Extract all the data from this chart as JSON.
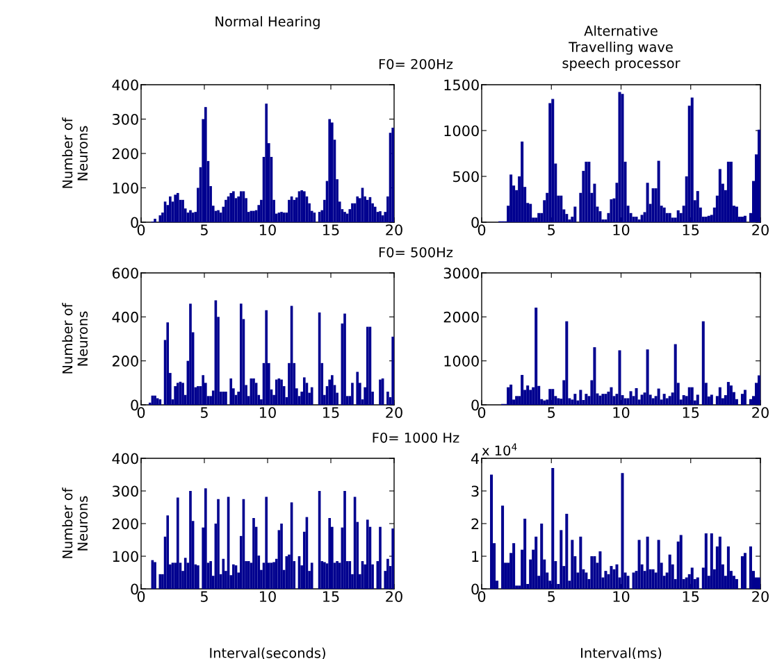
{
  "chart_data": [
    {
      "type": "histogram",
      "title": "Normal Hearing",
      "subtitle": "F0= 200Hz",
      "ylabel": "Number of\nNeurons",
      "color": "#00008f",
      "xlim": [
        0,
        20
      ],
      "xticks": [
        0,
        5,
        10,
        15,
        20
      ],
      "ylim": [
        0,
        400
      ],
      "yticks": [
        0,
        100,
        200,
        300,
        400
      ],
      "bins": [
        0,
        0.2,
        0.4,
        0.6,
        0.8,
        1,
        1.2,
        1.4,
        1.6,
        1.8,
        2,
        2.2,
        2.4,
        2.6,
        2.8,
        3,
        3.2,
        3.4,
        3.6,
        3.8,
        4,
        4.2,
        4.4,
        4.6,
        4.8,
        5,
        5.2,
        5.4,
        5.6,
        5.8,
        6,
        6.2,
        6.4,
        6.6,
        6.8,
        7,
        7.2,
        7.4,
        7.6,
        7.8,
        8,
        8.2,
        8.4,
        8.6,
        8.8,
        9,
        9.2,
        9.4,
        9.6,
        9.8,
        10,
        10.2,
        10.4,
        10.6,
        10.8,
        11,
        11.2,
        11.4,
        11.6,
        11.8,
        12,
        12.2,
        12.4,
        12.6,
        12.8,
        13,
        13.2,
        13.4,
        13.6,
        13.8,
        14,
        14.2,
        14.4,
        14.6,
        14.8,
        15,
        15.2,
        15.4,
        15.6,
        15.8,
        16,
        16.2,
        16.4,
        16.6,
        16.8,
        17,
        17.2,
        17.4,
        17.6,
        17.8,
        18,
        18.2,
        18.4,
        18.6,
        18.8,
        19,
        19.2,
        19.4,
        19.6,
        19.8,
        20
      ],
      "values": [
        0,
        0,
        0,
        0,
        2,
        10,
        0,
        20,
        28,
        60,
        50,
        75,
        60,
        80,
        85,
        65,
        65,
        40,
        28,
        35,
        28,
        30,
        100,
        160,
        300,
        335,
        178,
        105,
        48,
        33,
        35,
        28,
        45,
        65,
        75,
        85,
        90,
        70,
        75,
        90,
        90,
        70,
        30,
        33,
        33,
        35,
        50,
        65,
        190,
        345,
        230,
        190,
        65,
        25,
        28,
        30,
        28,
        28,
        65,
        75,
        65,
        72,
        90,
        93,
        90,
        75,
        55,
        33,
        28,
        0,
        30,
        35,
        65,
        120,
        300,
        290,
        240,
        125,
        60,
        38,
        30,
        25,
        38,
        55,
        55,
        75,
        70,
        100,
        75,
        65,
        73,
        55,
        45,
        30,
        32,
        20,
        30,
        75,
        260,
        275
      ]
    },
    {
      "type": "histogram",
      "title": "Alternative\nTravelling wave\nspeech processor",
      "color": "#00008f",
      "xlim": [
        0,
        20
      ],
      "xticks": [
        0,
        5,
        10,
        15,
        20
      ],
      "ylim": [
        0,
        1500
      ],
      "yticks": [
        0,
        500,
        1000,
        1500
      ],
      "bins": [
        0,
        0.2,
        0.4,
        0.6,
        0.8,
        1,
        1.2,
        1.4,
        1.6,
        1.8,
        2,
        2.2,
        2.4,
        2.6,
        2.8,
        3,
        3.2,
        3.4,
        3.6,
        3.8,
        4,
        4.2,
        4.4,
        4.6,
        4.8,
        5,
        5.2,
        5.4,
        5.6,
        5.8,
        6,
        6.2,
        6.4,
        6.6,
        6.8,
        7,
        7.2,
        7.4,
        7.6,
        7.8,
        8,
        8.2,
        8.4,
        8.6,
        8.8,
        9,
        9.2,
        9.4,
        9.6,
        9.8,
        10,
        10.2,
        10.4,
        10.6,
        10.8,
        11,
        11.2,
        11.4,
        11.6,
        11.8,
        12,
        12.2,
        12.4,
        12.6,
        12.8,
        13,
        13.2,
        13.4,
        13.6,
        13.8,
        14,
        14.2,
        14.4,
        14.6,
        14.8,
        15,
        15.2,
        15.4,
        15.6,
        15.8,
        16,
        16.2,
        16.4,
        16.6,
        16.8,
        17,
        17.2,
        17.4,
        17.6,
        17.8,
        18,
        18.2,
        18.4,
        18.6,
        18.8,
        19,
        19.2,
        19.4,
        19.6,
        19.8,
        20
      ],
      "values": [
        0,
        0,
        0,
        0,
        0,
        0,
        10,
        10,
        10,
        180,
        520,
        400,
        350,
        500,
        880,
        385,
        210,
        200,
        50,
        50,
        100,
        100,
        240,
        320,
        1300,
        1345,
        640,
        290,
        290,
        140,
        90,
        30,
        60,
        170,
        0,
        320,
        560,
        660,
        660,
        320,
        420,
        170,
        120,
        30,
        30,
        100,
        250,
        260,
        430,
        1420,
        1400,
        660,
        180,
        100,
        60,
        60,
        30,
        80,
        110,
        430,
        200,
        370,
        370,
        670,
        180,
        160,
        100,
        100,
        50,
        50,
        130,
        100,
        180,
        500,
        1270,
        1360,
        240,
        340,
        160,
        60,
        60,
        70,
        80,
        160,
        290,
        580,
        420,
        350,
        660,
        660,
        180,
        170,
        60,
        60,
        70,
        0,
        100,
        450,
        740,
        1010
      ]
    },
    {
      "type": "histogram",
      "subtitle": "F0= 500Hz",
      "ylabel": "Number of\nNeurons",
      "color": "#00008f",
      "xlim": [
        0,
        20
      ],
      "xticks": [
        0,
        5,
        10,
        15,
        20
      ],
      "ylim": [
        0,
        600
      ],
      "yticks": [
        0,
        200,
        400,
        600
      ],
      "bins": [
        0,
        0.2,
        0.4,
        0.6,
        0.8,
        1,
        1.2,
        1.4,
        1.6,
        1.8,
        2,
        2.2,
        2.4,
        2.6,
        2.8,
        3,
        3.2,
        3.4,
        3.6,
        3.8,
        4,
        4.2,
        4.4,
        4.6,
        4.8,
        5,
        5.2,
        5.4,
        5.6,
        5.8,
        6,
        6.2,
        6.4,
        6.6,
        6.8,
        7,
        7.2,
        7.4,
        7.6,
        7.8,
        8,
        8.2,
        8.4,
        8.6,
        8.8,
        9,
        9.2,
        9.4,
        9.6,
        9.8,
        10,
        10.2,
        10.4,
        10.6,
        10.8,
        11,
        11.2,
        11.4,
        11.6,
        11.8,
        12,
        12.2,
        12.4,
        12.6,
        12.8,
        13,
        13.2,
        13.4,
        13.6,
        13.8,
        14,
        14.2,
        14.4,
        14.6,
        14.8,
        15,
        15.2,
        15.4,
        15.6,
        15.8,
        16,
        16.2,
        16.4,
        16.6,
        16.8,
        17,
        17.2,
        17.4,
        17.6,
        17.8,
        18,
        18.2,
        18.4,
        18.6,
        18.8,
        19,
        19.2,
        19.4,
        19.6,
        19.8,
        20
      ],
      "values": [
        0,
        0,
        0,
        10,
        42,
        42,
        30,
        25,
        0,
        295,
        375,
        145,
        25,
        85,
        100,
        105,
        100,
        45,
        200,
        460,
        330,
        80,
        85,
        85,
        135,
        100,
        40,
        40,
        65,
        475,
        400,
        60,
        60,
        60,
        0,
        120,
        75,
        45,
        60,
        460,
        390,
        90,
        40,
        120,
        120,
        100,
        45,
        25,
        190,
        430,
        190,
        70,
        45,
        115,
        120,
        115,
        85,
        35,
        190,
        450,
        190,
        75,
        40,
        60,
        125,
        100,
        55,
        80,
        0,
        0,
        420,
        190,
        45,
        85,
        115,
        135,
        90,
        55,
        0,
        370,
        415,
        40,
        40,
        100,
        0,
        150,
        100,
        25,
        80,
        355,
        355,
        60,
        0,
        0,
        115,
        120,
        0,
        60,
        35,
        310
      ]
    },
    {
      "type": "histogram",
      "color": "#00008f",
      "xlim": [
        0,
        20
      ],
      "xticks": [
        0,
        5,
        10,
        15,
        20
      ],
      "ylim": [
        0,
        3000
      ],
      "yticks": [
        0,
        1000,
        2000,
        3000
      ],
      "bins": [
        0,
        0.2,
        0.4,
        0.6,
        0.8,
        1,
        1.2,
        1.4,
        1.6,
        1.8,
        2,
        2.2,
        2.4,
        2.6,
        2.8,
        3,
        3.2,
        3.4,
        3.6,
        3.8,
        4,
        4.2,
        4.4,
        4.6,
        4.8,
        5,
        5.2,
        5.4,
        5.6,
        5.8,
        6,
        6.2,
        6.4,
        6.6,
        6.8,
        7,
        7.2,
        7.4,
        7.6,
        7.8,
        8,
        8.2,
        8.4,
        8.6,
        8.8,
        9,
        9.2,
        9.4,
        9.6,
        9.8,
        10,
        10.2,
        10.4,
        10.6,
        10.8,
        11,
        11.2,
        11.4,
        11.6,
        11.8,
        12,
        12.2,
        12.4,
        12.6,
        12.8,
        13,
        13.2,
        13.4,
        13.6,
        13.8,
        14,
        14.2,
        14.4,
        14.6,
        14.8,
        15,
        15.2,
        15.4,
        15.6,
        15.8,
        16,
        16.2,
        16.4,
        16.6,
        16.8,
        17,
        17.2,
        17.4,
        17.6,
        17.8,
        18,
        18.2,
        18.4,
        18.6,
        18.8,
        19,
        19.2,
        19.4,
        19.6,
        19.8,
        20
      ],
      "values": [
        0,
        0,
        0,
        0,
        0,
        0,
        0,
        20,
        20,
        400,
        460,
        120,
        200,
        200,
        680,
        340,
        440,
        340,
        400,
        2210,
        430,
        130,
        100,
        120,
        360,
        360,
        200,
        150,
        140,
        560,
        1900,
        150,
        120,
        250,
        100,
        340,
        110,
        250,
        200,
        560,
        1310,
        260,
        210,
        250,
        250,
        300,
        400,
        200,
        250,
        1240,
        220,
        150,
        150,
        310,
        200,
        380,
        120,
        230,
        280,
        1260,
        230,
        150,
        200,
        370,
        120,
        250,
        150,
        200,
        280,
        1380,
        500,
        120,
        220,
        200,
        400,
        400,
        100,
        230,
        0,
        1900,
        500,
        190,
        230,
        0,
        200,
        400,
        150,
        220,
        520,
        440,
        290,
        130,
        0,
        250,
        340,
        0,
        130,
        200,
        500,
        670
      ]
    },
    {
      "type": "histogram",
      "subtitle": "F0= 1000 Hz",
      "ylabel": "Number of\nNeurons",
      "xlabel": "Interval(seconds)",
      "color": "#00008f",
      "xlim": [
        0,
        20
      ],
      "xticks": [
        0,
        5,
        10,
        15,
        20
      ],
      "ylim": [
        0,
        400
      ],
      "yticks": [
        0,
        100,
        200,
        300,
        400
      ],
      "bins": [
        0,
        0.2,
        0.4,
        0.6,
        0.8,
        1,
        1.2,
        1.4,
        1.6,
        1.8,
        2,
        2.2,
        2.4,
        2.6,
        2.8,
        3,
        3.2,
        3.4,
        3.6,
        3.8,
        4,
        4.2,
        4.4,
        4.6,
        4.8,
        5,
        5.2,
        5.4,
        5.6,
        5.8,
        6,
        6.2,
        6.4,
        6.6,
        6.8,
        7,
        7.2,
        7.4,
        7.6,
        7.8,
        8,
        8.2,
        8.4,
        8.6,
        8.8,
        9,
        9.2,
        9.4,
        9.6,
        9.8,
        10,
        10.2,
        10.4,
        10.6,
        10.8,
        11,
        11.2,
        11.4,
        11.6,
        11.8,
        12,
        12.2,
        12.4,
        12.6,
        12.8,
        13,
        13.2,
        13.4,
        13.6,
        13.8,
        14,
        14.2,
        14.4,
        14.6,
        14.8,
        15,
        15.2,
        15.4,
        15.6,
        15.8,
        16,
        16.2,
        16.4,
        16.6,
        16.8,
        17,
        17.2,
        17.4,
        17.6,
        17.8,
        18,
        18.2,
        18.4,
        18.6,
        18.8,
        19,
        19.2,
        19.4,
        19.6,
        19.8,
        20
      ],
      "values": [
        0,
        0,
        0,
        0,
        88,
        82,
        0,
        45,
        45,
        160,
        225,
        75,
        80,
        80,
        280,
        80,
        55,
        95,
        80,
        300,
        208,
        75,
        72,
        0,
        188,
        308,
        80,
        85,
        40,
        200,
        275,
        45,
        92,
        55,
        282,
        42,
        75,
        72,
        50,
        162,
        275,
        85,
        85,
        80,
        217,
        190,
        102,
        58,
        80,
        282,
        80,
        80,
        82,
        92,
        180,
        200,
        58,
        100,
        105,
        265,
        85,
        0,
        100,
        72,
        175,
        220,
        55,
        80,
        0,
        0,
        300,
        85,
        82,
        78,
        217,
        190,
        80,
        85,
        80,
        188,
        300,
        85,
        85,
        45,
        282,
        205,
        45,
        85,
        75,
        212,
        190,
        75,
        0,
        85,
        190,
        0,
        55,
        92,
        70,
        185
      ]
    },
    {
      "type": "histogram",
      "xlabel": "Interval(ms)",
      "annotations": [
        "x 10$^{4}$"
      ],
      "color": "#00008f",
      "xlim": [
        0,
        20
      ],
      "xticks": [
        0,
        5,
        10,
        15,
        20
      ],
      "ylim": [
        0,
        4
      ],
      "yticks": [
        0,
        1,
        2,
        3,
        4
      ],
      "bins": [
        0,
        0.2,
        0.4,
        0.6,
        0.8,
        1,
        1.2,
        1.4,
        1.6,
        1.8,
        2,
        2.2,
        2.4,
        2.6,
        2.8,
        3,
        3.2,
        3.4,
        3.6,
        3.8,
        4,
        4.2,
        4.4,
        4.6,
        4.8,
        5,
        5.2,
        5.4,
        5.6,
        5.8,
        6,
        6.2,
        6.4,
        6.6,
        6.8,
        7,
        7.2,
        7.4,
        7.6,
        7.8,
        8,
        8.2,
        8.4,
        8.6,
        8.8,
        9,
        9.2,
        9.4,
        9.6,
        9.8,
        10,
        10.2,
        10.4,
        10.6,
        10.8,
        11,
        11.2,
        11.4,
        11.6,
        11.8,
        12,
        12.2,
        12.4,
        12.6,
        12.8,
        13,
        13.2,
        13.4,
        13.6,
        13.8,
        14,
        14.2,
        14.4,
        14.6,
        14.8,
        15,
        15.2,
        15.4,
        15.6,
        15.8,
        16,
        16.2,
        16.4,
        16.6,
        16.8,
        17,
        17.2,
        17.4,
        17.6,
        17.8,
        18,
        18.2,
        18.4,
        18.6,
        18.8,
        19,
        19.2,
        19.4,
        19.6,
        19.8,
        20
      ],
      "values": [
        0,
        0,
        0,
        3.5,
        1.4,
        0.25,
        0,
        2.55,
        0.8,
        0.8,
        1.1,
        1.4,
        0.1,
        0.1,
        1.2,
        2.15,
        0.15,
        0.9,
        1.2,
        1.6,
        0.4,
        2.0,
        0.9,
        0.5,
        0.25,
        3.7,
        0.85,
        0.15,
        1.8,
        0.7,
        2.3,
        0.25,
        1.5,
        1.0,
        0.5,
        1.6,
        0.6,
        0.5,
        0.3,
        1.0,
        1.0,
        0.8,
        1.15,
        0.35,
        0.55,
        0.45,
        0.7,
        0.6,
        0.75,
        0.35,
        3.55,
        0.5,
        0.4,
        0,
        0.5,
        0.55,
        1.5,
        0.75,
        0.55,
        1.6,
        0.6,
        0.6,
        0.5,
        1.5,
        0.8,
        0.4,
        0.5,
        1.05,
        0.75,
        0.3,
        1.45,
        1.65,
        0.3,
        0.35,
        0.45,
        0.65,
        0.3,
        0.35,
        0,
        0.65,
        1.7,
        0.4,
        1.7,
        0.6,
        1.3,
        1.6,
        0.75,
        0.4,
        1.3,
        0.55,
        0.4,
        0.3,
        0,
        1.0,
        1.1,
        0,
        1.3,
        0.55,
        0.35,
        0.35
      ]
    }
  ]
}
